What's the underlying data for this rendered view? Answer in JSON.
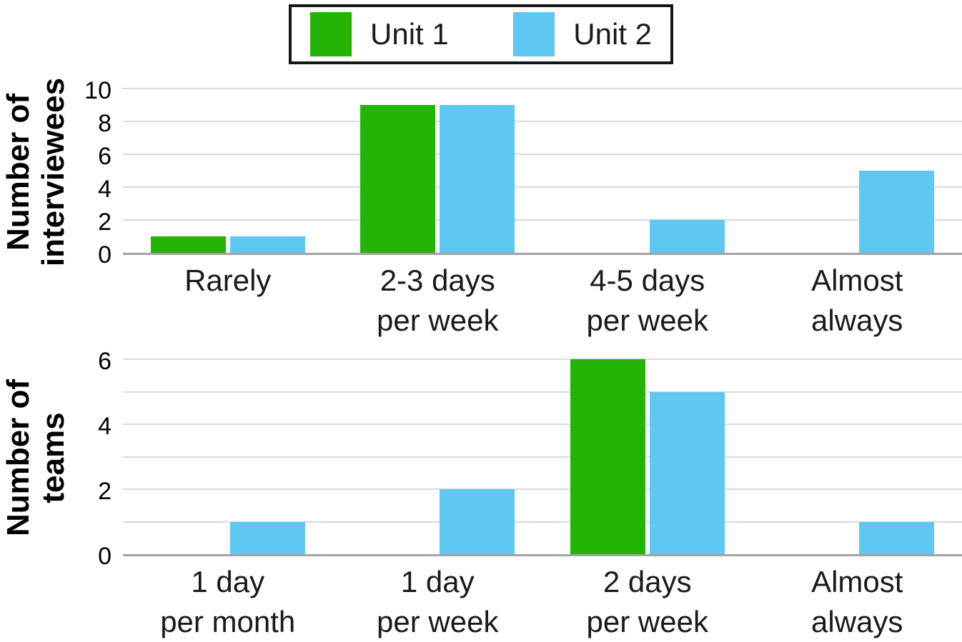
{
  "colors": {
    "unit1_green": "#23b405",
    "unit2_blue": "#5ec7f2",
    "gridline": "#d9d9d9",
    "axis_line": "#a3a3a3",
    "text": "#000000"
  },
  "legend": {
    "items": [
      {
        "label": "Unit 1",
        "color": "#23b405"
      },
      {
        "label": "Unit 2",
        "color": "#5ec7f2"
      }
    ]
  },
  "chart_data": [
    {
      "type": "bar",
      "title": "",
      "xlabel": "",
      "ylabel": "Number of interviewees",
      "ylabel_lines": [
        "Number of",
        "interviewees"
      ],
      "categories": [
        "Rarely",
        "2-3 days\nper week",
        "4-5 days\nper week",
        "Almost\nalways"
      ],
      "series": [
        {
          "name": "Unit 1",
          "color": "#23b405",
          "values": [
            1,
            9,
            0,
            0
          ]
        },
        {
          "name": "Unit 2",
          "color": "#5ec7f2",
          "values": [
            1,
            9,
            2,
            5
          ]
        }
      ],
      "ylim": [
        0,
        10
      ],
      "grid_step": 2,
      "tick_labels": [
        0,
        2,
        4,
        6,
        8,
        10
      ],
      "grid": true,
      "legend_position": "top-center"
    },
    {
      "type": "bar",
      "title": "",
      "xlabel": "",
      "ylabel": "Number of teams",
      "ylabel_lines": [
        "Number of",
        "teams"
      ],
      "categories": [
        "1 day\nper month",
        "1 day\nper week",
        "2 days\nper week",
        "Almost\nalways"
      ],
      "series": [
        {
          "name": "Unit 1",
          "color": "#23b405",
          "values": [
            0,
            0,
            6,
            0
          ]
        },
        {
          "name": "Unit 2",
          "color": "#5ec7f2",
          "values": [
            1,
            2,
            5,
            1
          ]
        }
      ],
      "ylim": [
        0,
        6
      ],
      "grid_step": 1,
      "tick_labels": [
        0,
        2,
        4,
        6
      ],
      "grid": true,
      "legend_position": "top-center"
    }
  ]
}
